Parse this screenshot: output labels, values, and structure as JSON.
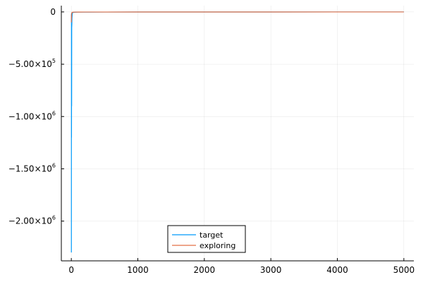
{
  "chart_data": {
    "type": "line",
    "title": "",
    "xlabel": "",
    "ylabel": "",
    "xlim": [
      -150,
      5150
    ],
    "ylim": [
      -2380000,
      60000
    ],
    "grid": true,
    "legend_position": "bottom-center",
    "x_ticks": [
      {
        "value": 0,
        "label": "0"
      },
      {
        "value": 1000,
        "label": "1000"
      },
      {
        "value": 2000,
        "label": "2000"
      },
      {
        "value": 3000,
        "label": "3000"
      },
      {
        "value": 4000,
        "label": "4000"
      },
      {
        "value": 5000,
        "label": "5000"
      }
    ],
    "y_ticks": [
      {
        "value": 0,
        "base": "0",
        "exp": ""
      },
      {
        "value": -500000,
        "base": "−5.00×10",
        "exp": "5"
      },
      {
        "value": -1000000,
        "base": "−1.00×10",
        "exp": "6"
      },
      {
        "value": -1500000,
        "base": "−1.50×10",
        "exp": "6"
      },
      {
        "value": -2000000,
        "base": "−2.00×10",
        "exp": "6"
      }
    ],
    "series": [
      {
        "name": "target",
        "color": "#009af9",
        "x": [
          1,
          2,
          3,
          4,
          5,
          6,
          8,
          10,
          12,
          15,
          20,
          25,
          30,
          40,
          50,
          75,
          100,
          200,
          500,
          1000,
          2000,
          3000,
          4000,
          5000
        ],
        "y": [
          -2300000,
          -20000,
          -1200000,
          -280000,
          -900000,
          -150000,
          -120000,
          -60000,
          -40000,
          -10000,
          -8000,
          -6000,
          -5000,
          -4000,
          -3000,
          -2500,
          -2000,
          -1500,
          -1000,
          -800,
          -600,
          -500,
          -400,
          -300
        ]
      },
      {
        "name": "exploring",
        "color": "#e26f46",
        "x": [
          1,
          2,
          3,
          4,
          5,
          8,
          10,
          15,
          20,
          30,
          50,
          100,
          200,
          500,
          1000,
          2000,
          3000,
          4000,
          5000
        ],
        "y": [
          -100000,
          -30000,
          -60000,
          -20000,
          -15000,
          -8000,
          -6000,
          -4000,
          -3000,
          -2500,
          -2000,
          -1500,
          -1200,
          -1000,
          -800,
          -600,
          -500,
          -400,
          -300
        ]
      }
    ]
  }
}
